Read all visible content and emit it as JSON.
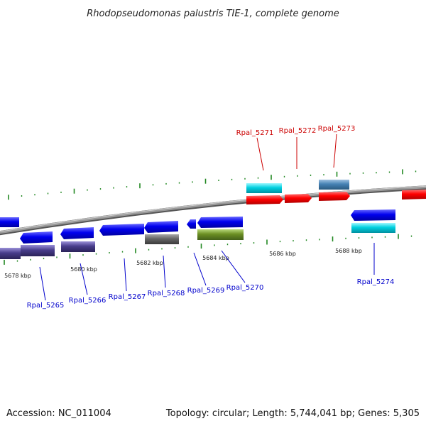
{
  "title": "Rhodopseudomonas palustris TIE-1, complete genome",
  "footer": {
    "accession": "Accession: NC_011004",
    "summary": "Topology: circular; Length: 5,744,041 bp; Genes: 5,305"
  },
  "colors": {
    "forward_label": "#cc0000",
    "reverse_label": "#0000cc",
    "backbone": "#888888",
    "ticks": "#228822"
  },
  "scale_labels": [
    "5678 kbp",
    "5680 kbp",
    "5682 kbp",
    "5684 kbp",
    "5686 kbp",
    "5688 kbp"
  ],
  "gene_labels": {
    "forward": [
      "Rpal_5271",
      "Rpal_5272",
      "Rpal_5273"
    ],
    "reverse": [
      "Rpal_5265",
      "Rpal_5266",
      "Rpal_5267",
      "Rpal_5268",
      "Rpal_5269",
      "Rpal_5270",
      "Rpal_5274"
    ]
  }
}
